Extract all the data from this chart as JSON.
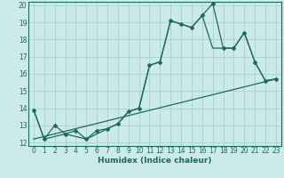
{
  "xlabel": "Humidex (Indice chaleur)",
  "bg_color": "#cceae8",
  "grid_color": "#aad4d2",
  "line_color": "#1a6b5a",
  "xlim": [
    -0.5,
    23.5
  ],
  "ylim": [
    11.8,
    20.2
  ],
  "xticks": [
    0,
    1,
    2,
    3,
    4,
    5,
    6,
    7,
    8,
    9,
    10,
    11,
    12,
    13,
    14,
    15,
    16,
    17,
    18,
    19,
    20,
    21,
    22,
    23
  ],
  "yticks": [
    12,
    13,
    14,
    15,
    16,
    17,
    18,
    19,
    20
  ],
  "series1_x": [
    0,
    1,
    2,
    3,
    4,
    5,
    6,
    7,
    8,
    9,
    10,
    11,
    12,
    13,
    14,
    15,
    16,
    17,
    18,
    19,
    20,
    21,
    22,
    23
  ],
  "series1_y": [
    13.9,
    12.2,
    13.0,
    12.5,
    12.7,
    12.2,
    12.7,
    12.8,
    13.1,
    13.8,
    14.0,
    16.5,
    16.7,
    19.1,
    18.9,
    18.7,
    19.4,
    20.1,
    17.5,
    17.5,
    18.4,
    16.7,
    15.6,
    15.7
  ],
  "series2_x": [
    0,
    1,
    3,
    5,
    7,
    8,
    9,
    10,
    11,
    12,
    13,
    14,
    15,
    16,
    17,
    18,
    19,
    20,
    21,
    22,
    23
  ],
  "series2_y": [
    13.9,
    12.2,
    12.5,
    12.2,
    12.8,
    13.1,
    13.8,
    14.0,
    16.5,
    16.7,
    19.1,
    18.9,
    18.7,
    19.4,
    17.5,
    17.5,
    17.5,
    18.4,
    16.7,
    15.6,
    15.7
  ],
  "series3_x": [
    0,
    23
  ],
  "series3_y": [
    12.2,
    15.7
  ]
}
